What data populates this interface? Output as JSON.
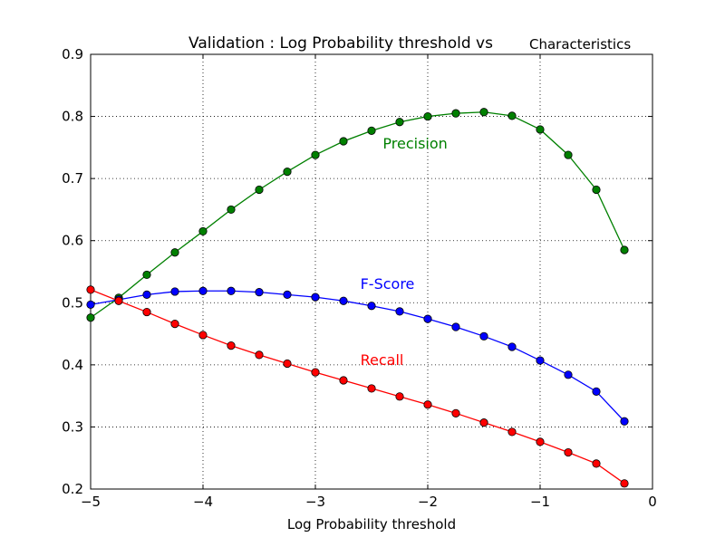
{
  "chart_data": {
    "type": "line",
    "title": "Validation : Log Probability threshold vs",
    "title_suffix": "Characteristics",
    "xlabel": "Log Probability threshold",
    "ylabel": "",
    "xlim": [
      -5,
      0
    ],
    "ylim": [
      0.2,
      0.9
    ],
    "x_ticks": [
      -5,
      -4,
      -3,
      -2,
      -1,
      0
    ],
    "x_tick_labels": [
      "−5",
      "−4",
      "−3",
      "−2",
      "−1",
      "0"
    ],
    "y_ticks": [
      0.2,
      0.3,
      0.4,
      0.5,
      0.6,
      0.7,
      0.8,
      0.9
    ],
    "y_tick_labels": [
      "0.2",
      "0.3",
      "0.4",
      "0.5",
      "0.6",
      "0.7",
      "0.8",
      "0.9"
    ],
    "grid": true,
    "legend": "none",
    "x": [
      -5.0,
      -4.75,
      -4.5,
      -4.25,
      -4.0,
      -3.75,
      -3.5,
      -3.25,
      -3.0,
      -2.75,
      -2.5,
      -2.25,
      -2.0,
      -1.75,
      -1.5,
      -1.25,
      -1.0,
      -0.75,
      -0.5,
      -0.25
    ],
    "series": [
      {
        "name": "Precision",
        "color": "#008000",
        "values": [
          0.476,
          0.508,
          0.545,
          0.581,
          0.615,
          0.65,
          0.682,
          0.711,
          0.738,
          0.76,
          0.777,
          0.791,
          0.8,
          0.805,
          0.807,
          0.801,
          0.779,
          0.738,
          0.682,
          0.585
        ],
        "label_at": [
          -2.4,
          0.748
        ]
      },
      {
        "name": "F-Score",
        "color": "#0000ff",
        "values": [
          0.497,
          0.505,
          0.513,
          0.518,
          0.519,
          0.519,
          0.517,
          0.513,
          0.509,
          0.503,
          0.495,
          0.486,
          0.474,
          0.461,
          0.446,
          0.429,
          0.407,
          0.384,
          0.357,
          0.309
        ],
        "label_at": [
          -2.6,
          0.522
        ]
      },
      {
        "name": "Recall",
        "color": "#ff0000",
        "values": [
          0.521,
          0.503,
          0.485,
          0.466,
          0.448,
          0.431,
          0.416,
          0.402,
          0.388,
          0.375,
          0.362,
          0.349,
          0.336,
          0.322,
          0.307,
          0.292,
          0.276,
          0.259,
          0.241,
          0.209
        ],
        "label_at": [
          -2.6,
          0.4
        ]
      }
    ]
  }
}
